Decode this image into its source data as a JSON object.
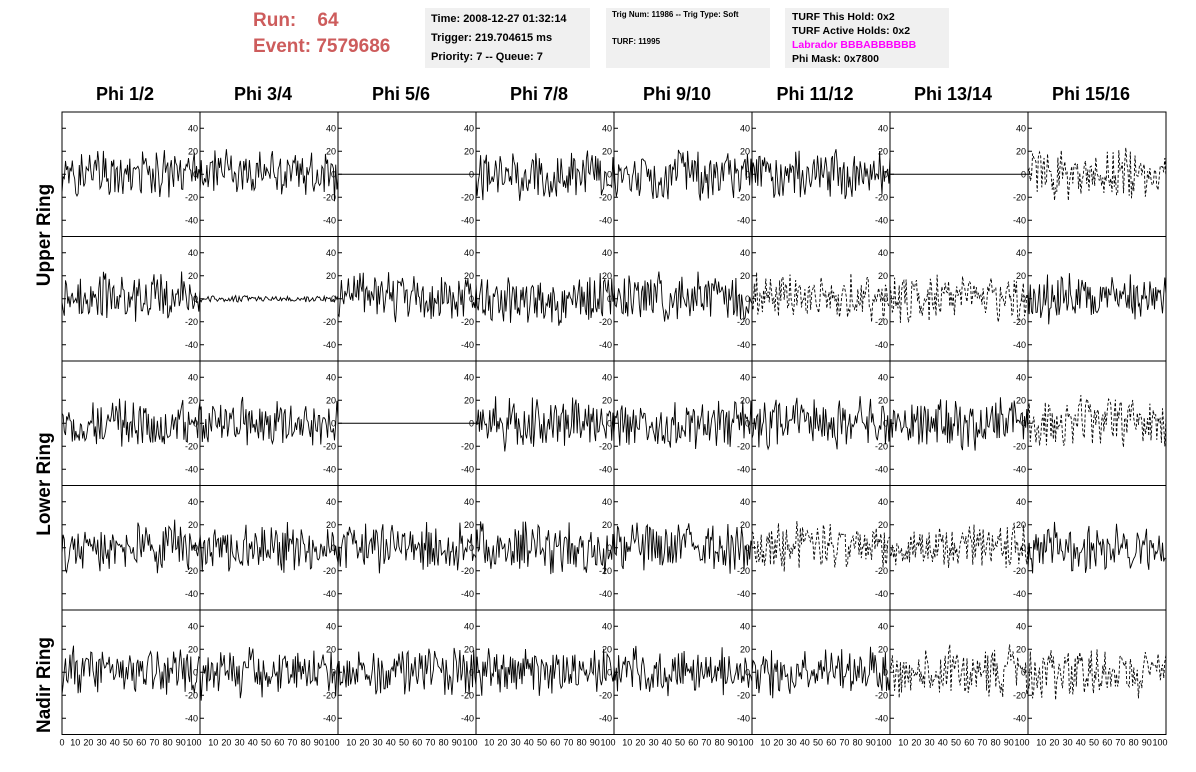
{
  "header": {
    "run_label": "Run:",
    "run_value": "64",
    "event_label": "Event:",
    "event_value": "7579686",
    "time_line": "Time: 2008-12-27 01:32:14",
    "trigger_line": "Trigger: 219.704615 ms",
    "priority_line": "Priority: 7 -- Queue: 7",
    "trig_line": "Trig Num: 11986 -- Trig Type: Soft",
    "turf_line": "TURF: 11995",
    "turf_hold": "TURF This Hold: 0x2",
    "turf_active": "TURF Active Holds: 0x2",
    "labrador": "Labrador BBBABBBBBB",
    "phi_mask": "Phi Mask: 0x7800"
  },
  "phi_titles": [
    "Phi 1/2",
    "Phi 3/4",
    "Phi 5/6",
    "Phi 7/8",
    "Phi 9/10",
    "Phi 11/12",
    "Phi 13/14",
    "Phi 15/16"
  ],
  "ring_labels": {
    "upper": "Upper Ring",
    "lower": "Lower Ring",
    "nadir": "Nadir Ring"
  },
  "y_ticks": [
    "40",
    "20",
    "0",
    "-20",
    "-40"
  ],
  "x_ticks": [
    "0",
    "10",
    "20",
    "30",
    "40",
    "50",
    "60",
    "70",
    "80",
    "90",
    "100"
  ],
  "colors": {
    "run_text": "#cd5c5c",
    "labrador": "#ff00ff",
    "box_bg": "#f0f0f0"
  },
  "panel_styles": [
    [
      "solid",
      "solid",
      "flat",
      "solid",
      "solid",
      "solid",
      "flat",
      "dashed"
    ],
    [
      "solid",
      "small",
      "solid",
      "solid",
      "solid",
      "dashed",
      "dashed",
      "solid"
    ],
    [
      "solid",
      "solid",
      "flat",
      "solid",
      "solid",
      "solid",
      "solid",
      "dashed"
    ],
    [
      "solid",
      "solid",
      "solid",
      "solid",
      "solid",
      "dashed",
      "dashed",
      "solid"
    ],
    [
      "solid",
      "solid",
      "solid",
      "solid",
      "solid",
      "solid",
      "dashed",
      "dashed"
    ]
  ]
}
